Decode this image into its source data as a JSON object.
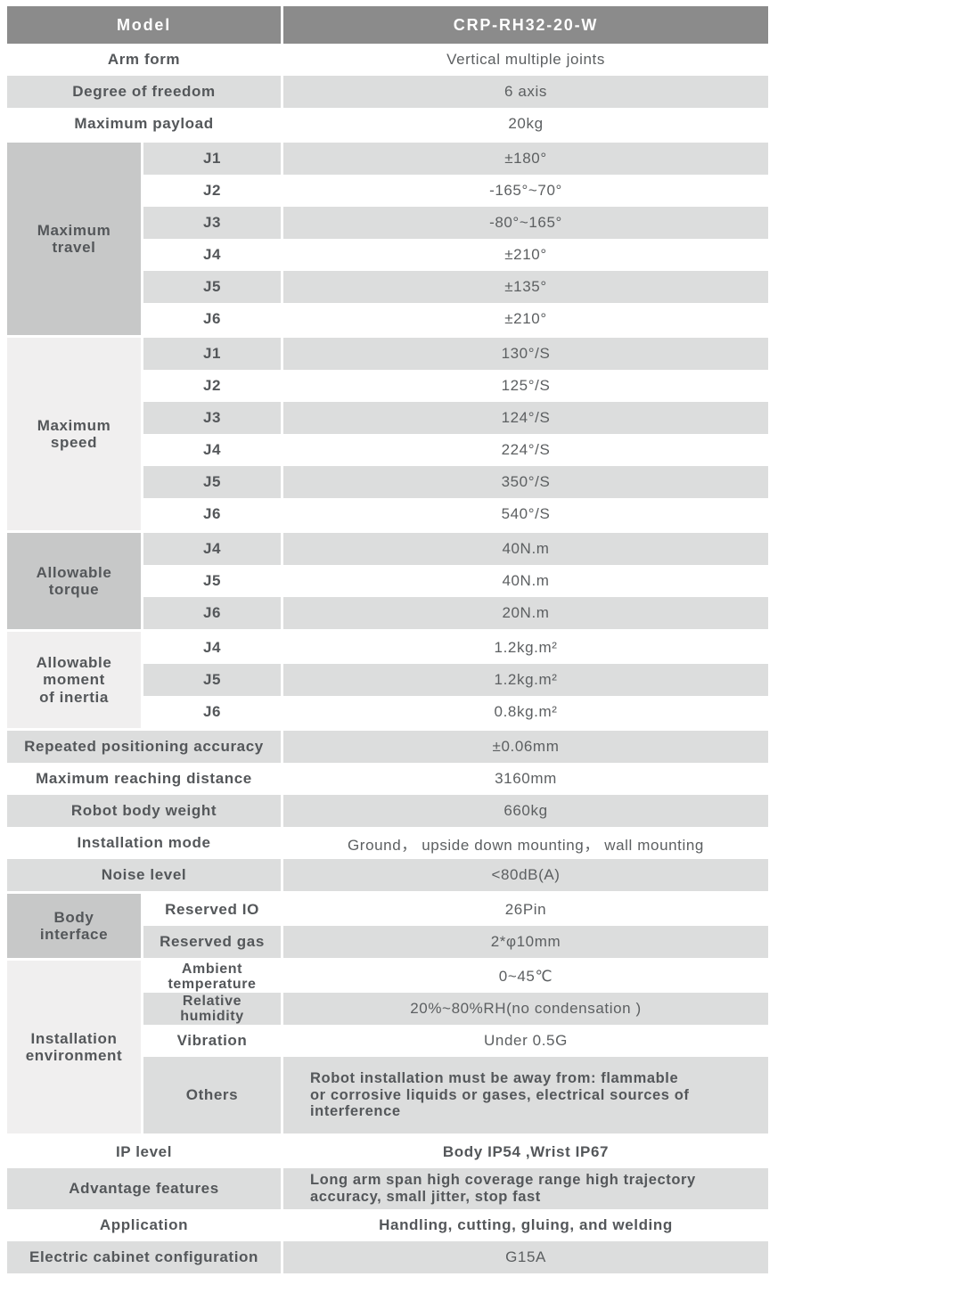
{
  "colors": {
    "header_bg": "#8b8b8b",
    "header_text": "#ffffff",
    "stripe_gray": "#dcdddd",
    "group_dark": "#c7c8c8",
    "group_light": "#f0efef",
    "label_text": "#54575a",
    "value_text": "#5c5f61"
  },
  "table": {
    "header": {
      "label": "Model",
      "value": "CRP-RH32-20-W"
    },
    "simple_top": [
      {
        "label": "Arm form",
        "value": "Vertical multiple joints"
      },
      {
        "label": "Degree of freedom",
        "value": "6 axis"
      },
      {
        "label": "Maximum payload",
        "value": "20kg"
      }
    ],
    "groups": {
      "travel": {
        "label": "Maximum\ntravel",
        "rows": [
          {
            "joint": "J1",
            "value": "±180°"
          },
          {
            "joint": "J2",
            "value": "-165°~70°"
          },
          {
            "joint": "J3",
            "value": "-80°~165°"
          },
          {
            "joint": "J4",
            "value": "±210°"
          },
          {
            "joint": "J5",
            "value": "±135°"
          },
          {
            "joint": "J6",
            "value": "±210°"
          }
        ]
      },
      "speed": {
        "label": "Maximum\nspeed",
        "rows": [
          {
            "joint": "J1",
            "value": "130°/S"
          },
          {
            "joint": "J2",
            "value": "125°/S"
          },
          {
            "joint": "J3",
            "value": "124°/S"
          },
          {
            "joint": "J4",
            "value": "224°/S"
          },
          {
            "joint": "J5",
            "value": "350°/S"
          },
          {
            "joint": "J6",
            "value": "540°/S"
          }
        ]
      },
      "torque": {
        "label": "Allowable\ntorque",
        "rows": [
          {
            "joint": "J4",
            "value": "40N.m"
          },
          {
            "joint": "J5",
            "value": "40N.m"
          },
          {
            "joint": "J6",
            "value": "20N.m"
          }
        ]
      },
      "inertia": {
        "label": "Allowable\nmoment\nof inertia",
        "rows": [
          {
            "joint": "J4",
            "value": "1.2kg.m²"
          },
          {
            "joint": "J5",
            "value": "1.2kg.m²"
          },
          {
            "joint": "J6",
            "value": "0.8kg.m²"
          }
        ]
      }
    },
    "simple_mid": [
      {
        "label": "Repeated positioning accuracy",
        "value": "±0.06mm"
      },
      {
        "label": "Maximum reaching distance",
        "value": "3160mm"
      },
      {
        "label": "Robot body weight",
        "value": "660kg"
      },
      {
        "label": "Installation mode",
        "value": "Ground， upside down mounting， wall mounting"
      },
      {
        "label": "Noise level",
        "value": "<80dB(A)"
      }
    ],
    "body_interface": {
      "label": "Body\ninterface",
      "rows": [
        {
          "name": "Reserved IO",
          "value": "26Pin"
        },
        {
          "name": "Reserved gas",
          "value": "2*φ10mm"
        }
      ]
    },
    "environment": {
      "label": "Installation\nenvironment",
      "rows": [
        {
          "name": "Ambient\ntemperature",
          "value": "0~45℃"
        },
        {
          "name": "Relative\nhumidity",
          "value": "20%~80%RH(no condensation )"
        },
        {
          "name": "Vibration",
          "value": "Under 0.5G"
        },
        {
          "name": "Others",
          "value": "Robot installation must be away from: flammable\nor corrosive liquids or gases, electrical sources of\ninterference"
        }
      ]
    },
    "simple_bottom": [
      {
        "label": "IP level",
        "value": "Body IP54 ,Wrist IP67"
      },
      {
        "label": "Advantage features",
        "value": "Long arm span high coverage range  high trajectory\naccuracy, small jitter, stop fast"
      },
      {
        "label": "Application",
        "value": "Handling, cutting, gluing, and welding"
      },
      {
        "label": "Electric cabinet configuration",
        "value": "G15A"
      }
    ]
  }
}
